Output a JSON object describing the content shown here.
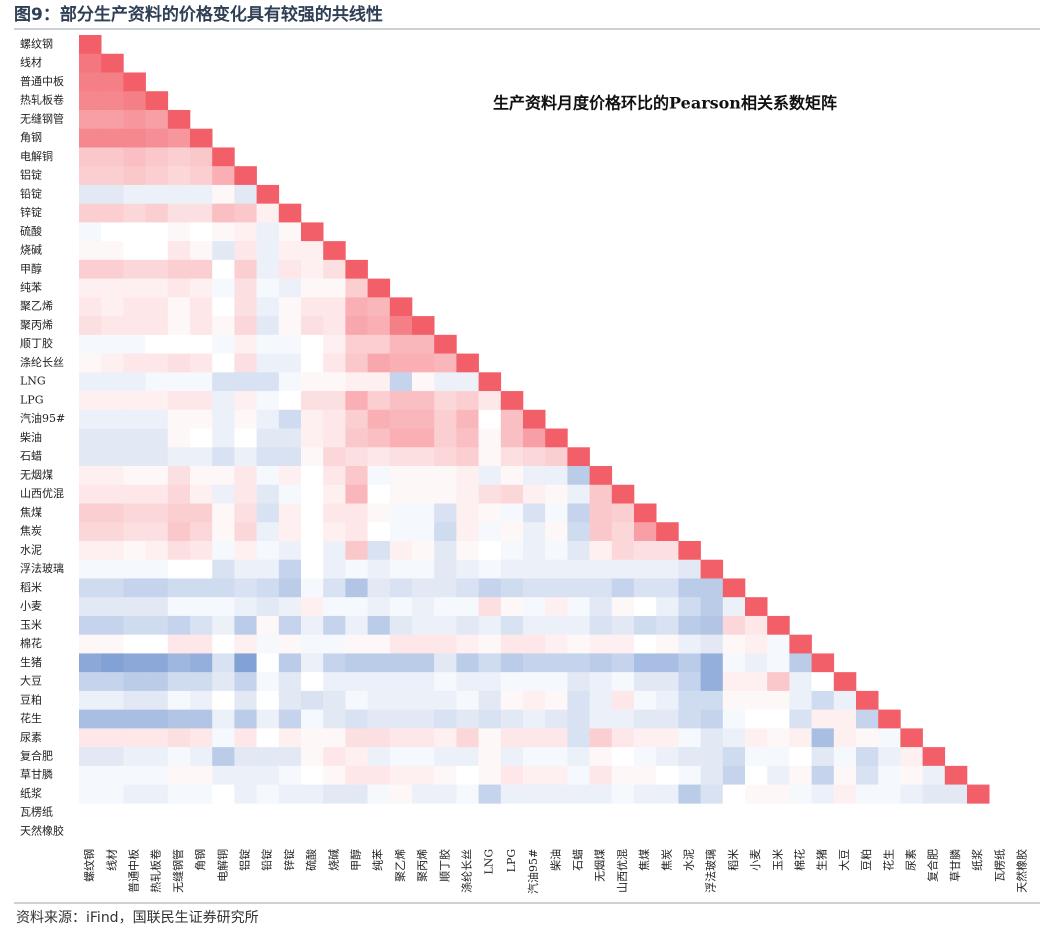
{
  "header": {
    "title": "图9：部分生产资料的价格变化具有较强的共线性"
  },
  "chart_data": {
    "type": "heatmap",
    "title": "生产资料月度价格环比的Pearson相关系数矩阵",
    "categories": [
      "螺纹钢",
      "线材",
      "普通中板",
      "热轧板卷",
      "无缝钢管",
      "角钢",
      "电解铜",
      "铝锭",
      "铅锭",
      "锌锭",
      "硫酸",
      "烧碱",
      "甲醇",
      "纯苯",
      "聚乙烯",
      "聚丙烯",
      "顺丁胶",
      "涤纶长丝",
      "LNG",
      "LPG",
      "汽油95#",
      "柴油",
      "石蜡",
      "无烟煤",
      "山西优混",
      "焦煤",
      "焦炭",
      "水泥",
      "浮法玻璃",
      "稻米",
      "小麦",
      "玉米",
      "棉花",
      "生猪",
      "大豆",
      "豆粕",
      "花生",
      "尿素",
      "复合肥",
      "草甘膦",
      "纸浆",
      "瓦楞纸",
      "天然橡胶"
    ],
    "colormap": {
      "vmin": -1,
      "vmax": 1,
      "colors": [
        "#3e6ebf",
        "#ffffff",
        "#f25f68"
      ]
    },
    "matrix": [
      [
        1
      ],
      [
        0.85,
        1
      ],
      [
        0.8,
        0.8,
        1
      ],
      [
        0.75,
        0.75,
        0.8,
        1
      ],
      [
        0.6,
        0.6,
        0.65,
        0.6,
        1
      ],
      [
        0.75,
        0.75,
        0.75,
        0.7,
        0.65,
        1
      ],
      [
        0.35,
        0.35,
        0.4,
        0.35,
        0.3,
        0.35,
        1
      ],
      [
        0.3,
        0.3,
        0.35,
        0.3,
        0.25,
        0.3,
        0.5,
        1
      ],
      [
        -0.15,
        -0.15,
        -0.1,
        -0.1,
        -0.1,
        -0.1,
        0.05,
        -0.15,
        1
      ],
      [
        0.3,
        0.3,
        0.25,
        0.3,
        0.2,
        0.2,
        0.4,
        0.35,
        0.1,
        1
      ],
      [
        -0.05,
        0,
        0,
        0,
        0.05,
        0,
        0.05,
        0.1,
        -0.1,
        0.05,
        1
      ],
      [
        0.05,
        0.05,
        0,
        0,
        0.15,
        0.05,
        -0.15,
        0.15,
        -0.1,
        0.1,
        0.1,
        1
      ],
      [
        0.3,
        0.3,
        0.25,
        0.25,
        0.3,
        0.3,
        0,
        0.3,
        -0.1,
        0.15,
        0.1,
        0.2,
        1
      ],
      [
        0.1,
        0.1,
        0.1,
        0.1,
        0.15,
        0.1,
        -0.05,
        0.2,
        -0.05,
        -0.1,
        0.05,
        0.05,
        0.3,
        1
      ],
      [
        0.15,
        0.1,
        0.15,
        0.15,
        0.05,
        0.15,
        0,
        0.2,
        -0.1,
        0.05,
        0.15,
        0.15,
        0.5,
        0.45,
        1
      ],
      [
        0.2,
        0.15,
        0.15,
        0.15,
        0.05,
        0.15,
        0.05,
        0.25,
        -0.15,
        0.05,
        0.2,
        0.15,
        0.55,
        0.5,
        0.8,
        1
      ],
      [
        -0.05,
        -0.05,
        -0.05,
        0,
        0,
        0,
        -0.05,
        0.1,
        -0.05,
        -0.05,
        0,
        0.1,
        0.3,
        0.3,
        0.45,
        0.45,
        1
      ],
      [
        0.05,
        0.1,
        0.15,
        0.15,
        0.2,
        0.15,
        0,
        0.2,
        -0.1,
        -0.1,
        0,
        0.15,
        0.35,
        0.55,
        0.5,
        0.5,
        0.45,
        1
      ],
      [
        -0.1,
        -0.1,
        -0.1,
        -0.05,
        -0.05,
        -0.05,
        -0.2,
        -0.2,
        -0.2,
        -0.05,
        0.05,
        0.05,
        0.1,
        0.1,
        -0.3,
        0.05,
        -0.1,
        -0.1,
        1
      ],
      [
        0.1,
        0.1,
        0.1,
        0.1,
        0.15,
        0.15,
        -0.1,
        0.1,
        -0.05,
        0,
        0.2,
        0.2,
        0.5,
        0.3,
        0.4,
        0.4,
        0.25,
        0.3,
        0.15,
        1
      ],
      [
        -0.1,
        -0.1,
        -0.1,
        -0.1,
        0.05,
        0.05,
        -0.1,
        0.05,
        -0.1,
        -0.25,
        0.1,
        0.15,
        0.3,
        0.5,
        0.45,
        0.45,
        0.3,
        0.45,
        0,
        0.4,
        1
      ],
      [
        -0.15,
        -0.15,
        -0.15,
        -0.15,
        0.05,
        0,
        -0.1,
        0,
        -0.15,
        -0.15,
        0.1,
        0.15,
        0.35,
        0.4,
        0.5,
        0.5,
        0.3,
        0.4,
        0.05,
        0.4,
        0.6,
        1
      ],
      [
        -0.15,
        -0.15,
        -0.15,
        -0.15,
        -0.1,
        -0.1,
        -0.2,
        -0.1,
        -0.2,
        -0.2,
        0.05,
        0.25,
        0.2,
        0.15,
        0.2,
        0.2,
        0.25,
        0.3,
        0.05,
        0.2,
        0.25,
        0.3,
        1
      ],
      [
        0.1,
        0.1,
        0.05,
        0.05,
        0.2,
        0.05,
        0.05,
        0.15,
        -0.05,
        0.1,
        0,
        0.15,
        0.35,
        -0.05,
        0.05,
        0.05,
        0.05,
        0.1,
        -0.1,
        0.05,
        -0.1,
        -0.1,
        -0.35,
        1
      ],
      [
        0.15,
        0.15,
        0.15,
        0.15,
        0.25,
        0.1,
        -0.1,
        0.15,
        -0.15,
        -0.05,
        0,
        0.1,
        0.45,
        0,
        0.05,
        0.05,
        0.05,
        0.1,
        0.2,
        0.25,
        0.1,
        0.05,
        -0.1,
        0.35,
        1
      ],
      [
        0.3,
        0.3,
        0.25,
        0.25,
        0.3,
        0.3,
        0.05,
        0.2,
        -0.2,
        0.1,
        0,
        0.15,
        0.15,
        0.05,
        -0.05,
        -0.05,
        -0.2,
        0.1,
        0.05,
        -0.05,
        -0.2,
        -0.05,
        -0.3,
        0.35,
        0.3,
        1
      ],
      [
        0.25,
        0.25,
        0.2,
        0.2,
        0.35,
        0.25,
        0.05,
        0.25,
        -0.1,
        0.1,
        0,
        0.1,
        0.15,
        0,
        -0.05,
        -0.05,
        -0.25,
        0.1,
        -0.05,
        0.05,
        -0.1,
        0.05,
        -0.25,
        0.35,
        0.25,
        0.6,
        1
      ],
      [
        0.1,
        0.1,
        0.05,
        0.1,
        0.2,
        0.15,
        -0.05,
        0.1,
        -0.05,
        -0.1,
        0,
        -0.1,
        0.35,
        -0.2,
        0.1,
        0.05,
        -0.15,
        0.05,
        0,
        -0.05,
        -0.1,
        -0.05,
        -0.15,
        0.1,
        0.25,
        0.2,
        0.2,
        1
      ],
      [
        -0.05,
        -0.05,
        -0.05,
        -0.05,
        0,
        0,
        -0.2,
        -0.1,
        -0.1,
        -0.3,
        0,
        -0.1,
        -0.05,
        -0.1,
        -0.05,
        -0.05,
        -0.15,
        -0.1,
        -0.05,
        -0.1,
        -0.1,
        -0.1,
        -0.1,
        -0.1,
        -0.1,
        -0.1,
        -0.1,
        -0.15,
        1
      ],
      [
        -0.25,
        -0.25,
        -0.3,
        -0.3,
        -0.25,
        -0.25,
        -0.25,
        -0.2,
        -0.25,
        -0.35,
        -0.05,
        -0.2,
        -0.4,
        -0.15,
        -0.2,
        -0.15,
        -0.15,
        -0.2,
        -0.3,
        -0.25,
        -0.2,
        -0.2,
        -0.2,
        -0.2,
        -0.3,
        -0.2,
        -0.2,
        -0.35,
        -0.35,
        1
      ],
      [
        -0.15,
        -0.15,
        -0.15,
        -0.15,
        -0.05,
        -0.05,
        -0.05,
        -0.1,
        -0.15,
        -0.1,
        0.1,
        -0.05,
        -0.05,
        -0.1,
        -0.05,
        -0.1,
        -0.05,
        -0.05,
        0.2,
        0.05,
        -0.05,
        0.1,
        -0.05,
        -0.15,
        0.05,
        0,
        -0.1,
        -0.25,
        -0.35,
        -0.1,
        1
      ],
      [
        -0.3,
        -0.3,
        -0.25,
        -0.25,
        -0.3,
        -0.2,
        -0.1,
        -0.35,
        0.05,
        -0.3,
        -0.1,
        -0.3,
        -0.1,
        -0.35,
        -0.15,
        -0.1,
        -0.1,
        -0.15,
        -0.1,
        -0.2,
        -0.1,
        -0.1,
        -0.1,
        -0.2,
        -0.15,
        -0.25,
        -0.2,
        -0.35,
        -0.4,
        0.25,
        0.15,
        1
      ],
      [
        0.05,
        0.05,
        0,
        0,
        0.15,
        0.15,
        0,
        0.1,
        -0.05,
        0.05,
        -0.05,
        -0.05,
        0.05,
        0.05,
        0.15,
        0.15,
        0.15,
        0.1,
        0.05,
        0.15,
        0.15,
        0.1,
        0.05,
        0.1,
        0.1,
        0,
        0.05,
        -0.1,
        -0.15,
        0.05,
        0.1,
        -0.05,
        1
      ],
      [
        -0.6,
        -0.65,
        -0.6,
        -0.6,
        -0.5,
        -0.55,
        -0.2,
        -0.65,
        0,
        -0.35,
        -0.1,
        -0.3,
        -0.35,
        -0.35,
        -0.35,
        -0.35,
        -0.15,
        -0.35,
        -0.25,
        -0.35,
        -0.3,
        -0.3,
        -0.3,
        -0.35,
        -0.3,
        -0.45,
        -0.45,
        -0.35,
        -0.55,
        -0.05,
        -0.1,
        -0.05,
        -0.35,
        1
      ],
      [
        -0.3,
        -0.3,
        -0.35,
        -0.35,
        -0.25,
        -0.25,
        -0.15,
        -0.3,
        -0.05,
        -0.15,
        0,
        -0.1,
        -0.1,
        -0.1,
        -0.1,
        -0.1,
        -0.05,
        -0.1,
        -0.1,
        -0.05,
        -0.05,
        -0.05,
        -0.15,
        -0.1,
        -0.05,
        -0.15,
        -0.15,
        -0.3,
        -0.55,
        0.1,
        0.1,
        0.35,
        -0.1,
        0,
        1
      ],
      [
        -0.1,
        -0.1,
        -0.15,
        -0.15,
        -0.05,
        -0.1,
        0,
        -0.15,
        0,
        -0.15,
        -0.2,
        -0.15,
        -0.05,
        -0.1,
        -0.1,
        -0.1,
        -0.1,
        -0.05,
        -0.15,
        0.05,
        0.1,
        0.05,
        -0.2,
        -0.1,
        0.15,
        -0.05,
        -0.1,
        -0.25,
        -0.25,
        0.05,
        0.05,
        0.05,
        -0.1,
        -0.25,
        -0.1,
        1
      ],
      [
        -0.45,
        -0.45,
        -0.45,
        -0.45,
        -0.4,
        -0.4,
        -0.1,
        -0.35,
        -0.1,
        -0.3,
        -0.05,
        -0.15,
        -0.2,
        -0.15,
        -0.15,
        -0.15,
        -0.2,
        -0.15,
        -0.2,
        -0.15,
        -0.1,
        -0.15,
        -0.2,
        -0.1,
        -0.1,
        -0.15,
        -0.15,
        -0.25,
        -0.3,
        -0.05,
        0,
        0,
        -0.2,
        0.1,
        0.1,
        -0.3,
        1
      ],
      [
        0.15,
        0.15,
        0.15,
        0.15,
        0.2,
        0.15,
        -0.05,
        0.15,
        0,
        0.1,
        0.05,
        0.05,
        0.2,
        0.2,
        0.15,
        0.15,
        0.1,
        0.25,
        0.05,
        0.15,
        0.15,
        0.15,
        -0.2,
        0.3,
        0.15,
        0.1,
        0.1,
        -0.05,
        -0.15,
        -0.1,
        0.1,
        0.05,
        0.1,
        -0.45,
        0.1,
        0.05,
        -0.05,
        1
      ],
      [
        -0.15,
        -0.15,
        -0.1,
        -0.1,
        -0.05,
        -0.1,
        -0.35,
        -0.15,
        -0.15,
        -0.15,
        0.05,
        0.15,
        0.1,
        -0.1,
        -0.05,
        -0.05,
        -0.1,
        -0.1,
        0.05,
        -0.1,
        -0.05,
        -0.05,
        -0.1,
        0.05,
        0,
        -0.05,
        -0.1,
        -0.15,
        -0.15,
        -0.25,
        -0.05,
        -0.05,
        0,
        -0.15,
        -0.05,
        -0.25,
        -0.1,
        0.1,
        1
      ],
      [
        -0.05,
        -0.05,
        -0.05,
        -0.05,
        0.05,
        0.05,
        -0.1,
        -0.1,
        -0.1,
        -0.05,
        0,
        0.05,
        0.15,
        0.15,
        0.1,
        0.1,
        0.05,
        0,
        0.05,
        0.15,
        0.1,
        0.1,
        -0.05,
        0.15,
        0.05,
        0.05,
        0,
        -0.05,
        -0.15,
        -0.3,
        0,
        -0.1,
        0.05,
        -0.3,
        0.05,
        -0.2,
        -0.05,
        0.05,
        -0.1,
        1
      ],
      [
        -0.05,
        -0.05,
        -0.1,
        -0.1,
        -0.05,
        -0.05,
        0,
        -0.1,
        -0.05,
        -0.1,
        -0.1,
        -0.15,
        -0.15,
        -0.05,
        0.05,
        -0.1,
        -0.1,
        -0.05,
        -0.3,
        -0.1,
        -0.1,
        -0.1,
        -0.1,
        -0.1,
        -0.05,
        -0.1,
        -0.1,
        -0.35,
        -0.2,
        0,
        0.05,
        0.05,
        -0.05,
        -0.1,
        0.1,
        -0.05,
        -0.05,
        -0.1,
        -0.15,
        -0.15,
        1
      ],
      [],
      []
    ]
  },
  "footer": {
    "source": "资料来源：iFind，国联民生证券研究所"
  }
}
